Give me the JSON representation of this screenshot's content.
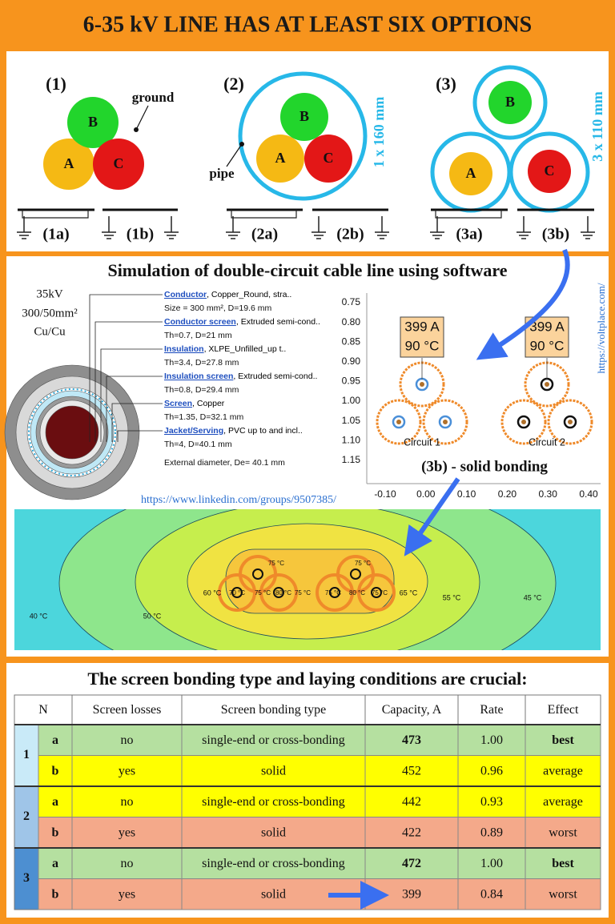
{
  "title": "6-35 kV LINE HAS AT LEAST SIX OPTIONS",
  "phase_colors": {
    "A": "#f5b914",
    "B": "#22d52c",
    "C": "#e31717"
  },
  "options": [
    {
      "label": "(1)",
      "phases": [
        "A",
        "B",
        "C"
      ],
      "note": "ground",
      "variants": [
        "(1a)",
        "(1b)"
      ]
    },
    {
      "label": "(2)",
      "phases": [
        "A",
        "B",
        "C"
      ],
      "note": "pipe",
      "size": "1 x 160 mm",
      "variants": [
        "(2a)",
        "(2b)"
      ]
    },
    {
      "label": "(3)",
      "phases": [
        "A",
        "B",
        "C"
      ],
      "size": "3 x 110 mm",
      "variants": [
        "(3a)",
        "(3b)"
      ]
    }
  ],
  "simulation": {
    "title": "Simulation of double-circuit cable line using software",
    "cable": {
      "voltage": "35kV",
      "section": "300/50mm²",
      "material": "Cu/Cu",
      "layers": [
        {
          "name": "Conductor",
          "desc": ", Copper_Round, stra..",
          "dims": "Size = 300 mm², D=19.6 mm"
        },
        {
          "name": "Conductor screen",
          "desc": ", Extruded semi-cond..",
          "dims": "Th=0.7, D=21 mm"
        },
        {
          "name": "Insulation",
          "desc": ", XLPE_Unfilled_up t..",
          "dims": "Th=3.4, D=27.8 mm"
        },
        {
          "name": "Insulation screen",
          "desc": ", Extruded semi-cond..",
          "dims": "Th=0.8, D=29.4 mm"
        },
        {
          "name": "Screen",
          "desc": ", Copper",
          "dims": "Th=1.35, D=32.1 mm"
        },
        {
          "name": "Jacket/Serving",
          "desc": ", PVC up to and incl..",
          "dims": "Th=4, D=40.1 mm"
        }
      ],
      "external": "External diameter, De= 40.1 mm"
    },
    "plot": {
      "yticks": [
        "0.75",
        "0.80",
        "0.85",
        "0.90",
        "0.95",
        "1.00",
        "1.05",
        "1.10",
        "1.15"
      ],
      "xticks": [
        "-0.10",
        "0.00",
        "0.10",
        "0.20",
        "0.30",
        "0.40"
      ],
      "circuits": [
        {
          "name": "Circuit 1",
          "current": "399 A",
          "temp": "90 °C"
        },
        {
          "name": "Circuit 2",
          "current": "399 A",
          "temp": "90 °C"
        }
      ],
      "caption": "(3b) - solid bonding"
    },
    "links": [
      "https://voltplace.com/",
      "https://www.linkedin.com/groups/9507385/"
    ],
    "thermal_labels": [
      "40 °C",
      "50 °C",
      "60 °C",
      "65 °C",
      "55 °C",
      "45 °C",
      "75 °C",
      "75 °C",
      "70 °C",
      "75 °C",
      "80 °C",
      "75 °C",
      "75 °C",
      "80 °C",
      "75 °C"
    ]
  },
  "table": {
    "title": "The screen bonding type and laying conditions are crucial:",
    "header": [
      "N",
      "Screen losses",
      "Screen bonding type",
      "Capacity, A",
      "Rate",
      "Effect"
    ],
    "groups": [
      {
        "n": "1",
        "color": "#c9eaf8",
        "rows": [
          {
            "cells": [
              "a",
              "no",
              "single-end or cross-bonding",
              "473",
              "1.00",
              "best"
            ],
            "color": "#b5e0a0",
            "emphasis": true
          },
          {
            "cells": [
              "b",
              "yes",
              "solid",
              "452",
              "0.96",
              "average"
            ],
            "color": "#ffff00",
            "emphasis": false
          }
        ]
      },
      {
        "n": "2",
        "color": "#9fc5e8",
        "rows": [
          {
            "cells": [
              "a",
              "no",
              "single-end or cross-bonding",
              "442",
              "0.93",
              "average"
            ],
            "color": "#ffff00",
            "emphasis": false
          },
          {
            "cells": [
              "b",
              "yes",
              "solid",
              "422",
              "0.89",
              "worst"
            ],
            "color": "#f4a98a",
            "emphasis": false
          }
        ]
      },
      {
        "n": "3",
        "color": "#4d8fd1",
        "rows": [
          {
            "cells": [
              "a",
              "no",
              "single-end or cross-bonding",
              "472",
              "1.00",
              "best"
            ],
            "color": "#b5e0a0",
            "emphasis": true
          },
          {
            "cells": [
              "b",
              "yes",
              "solid",
              "399",
              "0.84",
              "worst"
            ],
            "color": "#f4a98a",
            "emphasis": false
          }
        ]
      }
    ]
  }
}
